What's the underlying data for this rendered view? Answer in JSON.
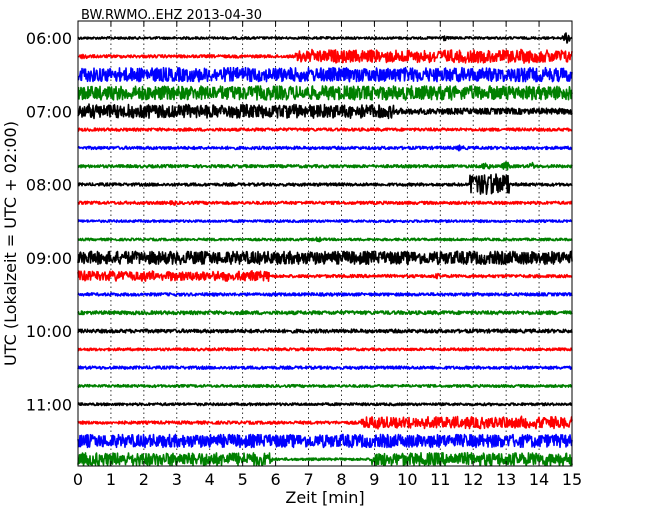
{
  "chart_data": {
    "type": "line",
    "title": "BW.RWMO..EHZ 2013-04-30",
    "xlabel": "Zeit  [min]",
    "ylabel": "UTC (Lokalzeit = UTC + 02:00)",
    "xlim": [
      0,
      15
    ],
    "x_ticks": [
      "0",
      "1",
      "2",
      "3",
      "4",
      "5",
      "6",
      "7",
      "8",
      "9",
      "10",
      "11",
      "12",
      "13",
      "14",
      "15"
    ],
    "y_ticks": [
      "06:00",
      "07:00",
      "08:00",
      "09:00",
      "10:00",
      "11:00"
    ],
    "grid": true,
    "colors": {
      "black": "#000000",
      "red": "#ff0000",
      "blue": "#0000ff",
      "green": "#008000"
    },
    "traces": [
      {
        "start": "06:00",
        "color": "black",
        "amp": 1.2,
        "bursts": [
          [
            11.1,
            3.5
          ],
          [
            14.85,
            6
          ]
        ]
      },
      {
        "start": "06:15",
        "color": "red",
        "amp": 1.5,
        "bursts": [
          [
            0.2,
            4
          ],
          [
            6.6,
            15,
            7
          ]
        ]
      },
      {
        "start": "06:30",
        "color": "blue",
        "amp": 7,
        "bursts": []
      },
      {
        "start": "06:45",
        "color": "green",
        "amp": 7,
        "bursts": []
      },
      {
        "start": "07:00",
        "color": "black",
        "amp": 3,
        "bursts": [
          [
            0,
            9.6,
            7.5
          ]
        ]
      },
      {
        "start": "07:15",
        "color": "red",
        "amp": 1.5,
        "bursts": []
      },
      {
        "start": "07:30",
        "color": "blue",
        "amp": 1.5,
        "bursts": [
          [
            11.6,
            3.5
          ]
        ]
      },
      {
        "start": "07:45",
        "color": "green",
        "amp": 1.5,
        "bursts": [
          [
            12.4,
            5
          ],
          [
            13.0,
            5
          ],
          [
            13.8,
            4
          ]
        ]
      },
      {
        "start": "08:00",
        "color": "black",
        "amp": 1.5,
        "bursts": [
          [
            11.9,
            13.1,
            12
          ]
        ]
      },
      {
        "start": "08:15",
        "color": "red",
        "amp": 1.5,
        "bursts": [
          [
            2.9,
            3
          ]
        ]
      },
      {
        "start": "08:30",
        "color": "blue",
        "amp": 1.2,
        "bursts": []
      },
      {
        "start": "08:45",
        "color": "green",
        "amp": 1.2,
        "bursts": [
          [
            7.3,
            3
          ]
        ]
      },
      {
        "start": "09:00",
        "color": "black",
        "amp": 6.5,
        "bursts": []
      },
      {
        "start": "09:15",
        "color": "red",
        "amp": 1.5,
        "bursts": [
          [
            0,
            5.8,
            5.5
          ],
          [
            10.9,
            3
          ]
        ]
      },
      {
        "start": "09:30",
        "color": "blue",
        "amp": 1.5,
        "bursts": []
      },
      {
        "start": "09:45",
        "color": "green",
        "amp": 1.8,
        "bursts": []
      },
      {
        "start": "10:00",
        "color": "black",
        "amp": 1.8,
        "bursts": []
      },
      {
        "start": "10:15",
        "color": "red",
        "amp": 1.3,
        "bursts": []
      },
      {
        "start": "10:30",
        "color": "blue",
        "amp": 1.5,
        "bursts": []
      },
      {
        "start": "10:45",
        "color": "green",
        "amp": 1.3,
        "bursts": []
      },
      {
        "start": "11:00",
        "color": "black",
        "amp": 1.3,
        "bursts": []
      },
      {
        "start": "11:15",
        "color": "red",
        "amp": 1.5,
        "bursts": [
          [
            8.6,
            15,
            6.5
          ]
        ]
      },
      {
        "start": "11:30",
        "color": "blue",
        "amp": 6.5,
        "bursts": []
      },
      {
        "start": "11:45",
        "color": "green",
        "amp": 6.5,
        "gap": [
          5.9,
          8.9
        ],
        "gap_amp": 1.2,
        "bursts": []
      }
    ]
  }
}
